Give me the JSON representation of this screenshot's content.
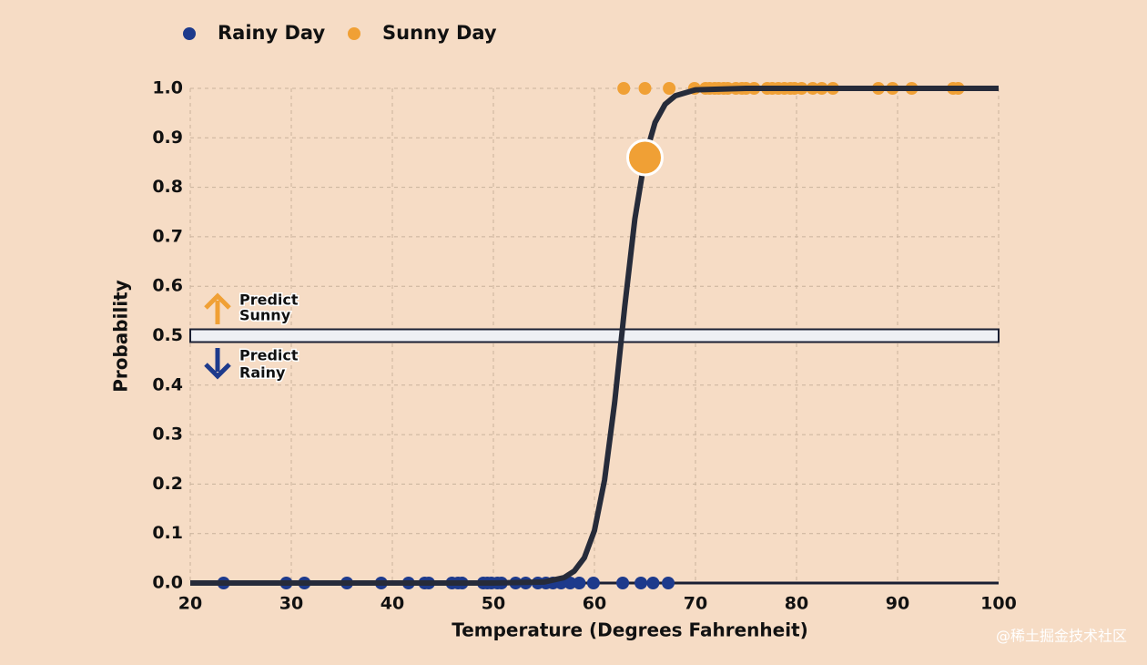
{
  "chart_data": {
    "type": "logistic",
    "xlabel": "Temperature (Degrees Fahrenheit)",
    "ylabel": "Probability",
    "xlim": [
      20,
      100
    ],
    "ylim": [
      0,
      1
    ],
    "xticks": [
      20,
      30,
      40,
      50,
      60,
      70,
      80,
      90,
      100
    ],
    "yticks": [
      {
        "value": 0,
        "label": "0.0"
      },
      0.1,
      0.2,
      0.3,
      0.4,
      0.5,
      0.6,
      0.7,
      0.8,
      0.9,
      {
        "value": 1,
        "label": "1.0"
      }
    ],
    "grid": true,
    "legend": "top-left",
    "threshold": 0.5,
    "series": [
      {
        "name": "Rainy Day",
        "color": "#1d3a8c",
        "x": [
          23.3,
          29.5,
          31.3,
          35.5,
          38.9,
          41.6,
          43.2,
          43.6,
          45.9,
          46.5,
          46.9,
          49.0,
          49.4,
          49.8,
          50.4,
          50.8,
          52.2,
          53.2,
          54.4,
          55.2,
          55.9,
          56.7,
          57.6,
          58.5,
          59.9,
          62.8,
          64.6,
          65.8,
          67.3
        ],
        "values": [
          0,
          0,
          0,
          0,
          0,
          0,
          0,
          0,
          0,
          0,
          0,
          0,
          0,
          0,
          0,
          0,
          0,
          0,
          0,
          0,
          0,
          0,
          0,
          0,
          0,
          0,
          0,
          0,
          0
        ]
      },
      {
        "name": "Sunny Day",
        "color": "#f0a035",
        "x": [
          62.9,
          65.0,
          67.4,
          69.9,
          71.0,
          71.4,
          71.9,
          72.3,
          72.8,
          73.2,
          74.0,
          74.6,
          75.0,
          75.8,
          77.1,
          77.6,
          78.2,
          78.8,
          79.4,
          79.8,
          80.5,
          81.6,
          82.5,
          83.6,
          88.1,
          89.5,
          91.4,
          95.5,
          96.0
        ],
        "values": [
          1,
          1,
          1,
          1,
          1,
          1,
          1,
          1,
          1,
          1,
          1,
          1,
          1,
          1,
          1,
          1,
          1,
          1,
          1,
          1,
          1,
          1,
          1,
          1,
          1,
          1,
          1,
          1,
          1
        ]
      }
    ],
    "curve": {
      "color": "#262b3a",
      "x": [
        20,
        30,
        40,
        50,
        55,
        57,
        58,
        59,
        60,
        61,
        62,
        63,
        64,
        65,
        66,
        67,
        68,
        70,
        75,
        80,
        90,
        100
      ],
      "values": [
        0,
        0,
        0,
        0,
        0.002,
        0.011,
        0.024,
        0.051,
        0.106,
        0.208,
        0.365,
        0.559,
        0.736,
        0.86,
        0.931,
        0.968,
        0.985,
        0.997,
        1,
        1,
        1,
        1
      ]
    },
    "highlight": {
      "x": 65,
      "y": 0.86,
      "color": "#f0a035"
    },
    "annotation_above": [
      "Predict",
      "Sunny"
    ],
    "annotation_below": [
      "Predict",
      "Rainy"
    ]
  },
  "watermark": "@稀土掘金技术社区"
}
